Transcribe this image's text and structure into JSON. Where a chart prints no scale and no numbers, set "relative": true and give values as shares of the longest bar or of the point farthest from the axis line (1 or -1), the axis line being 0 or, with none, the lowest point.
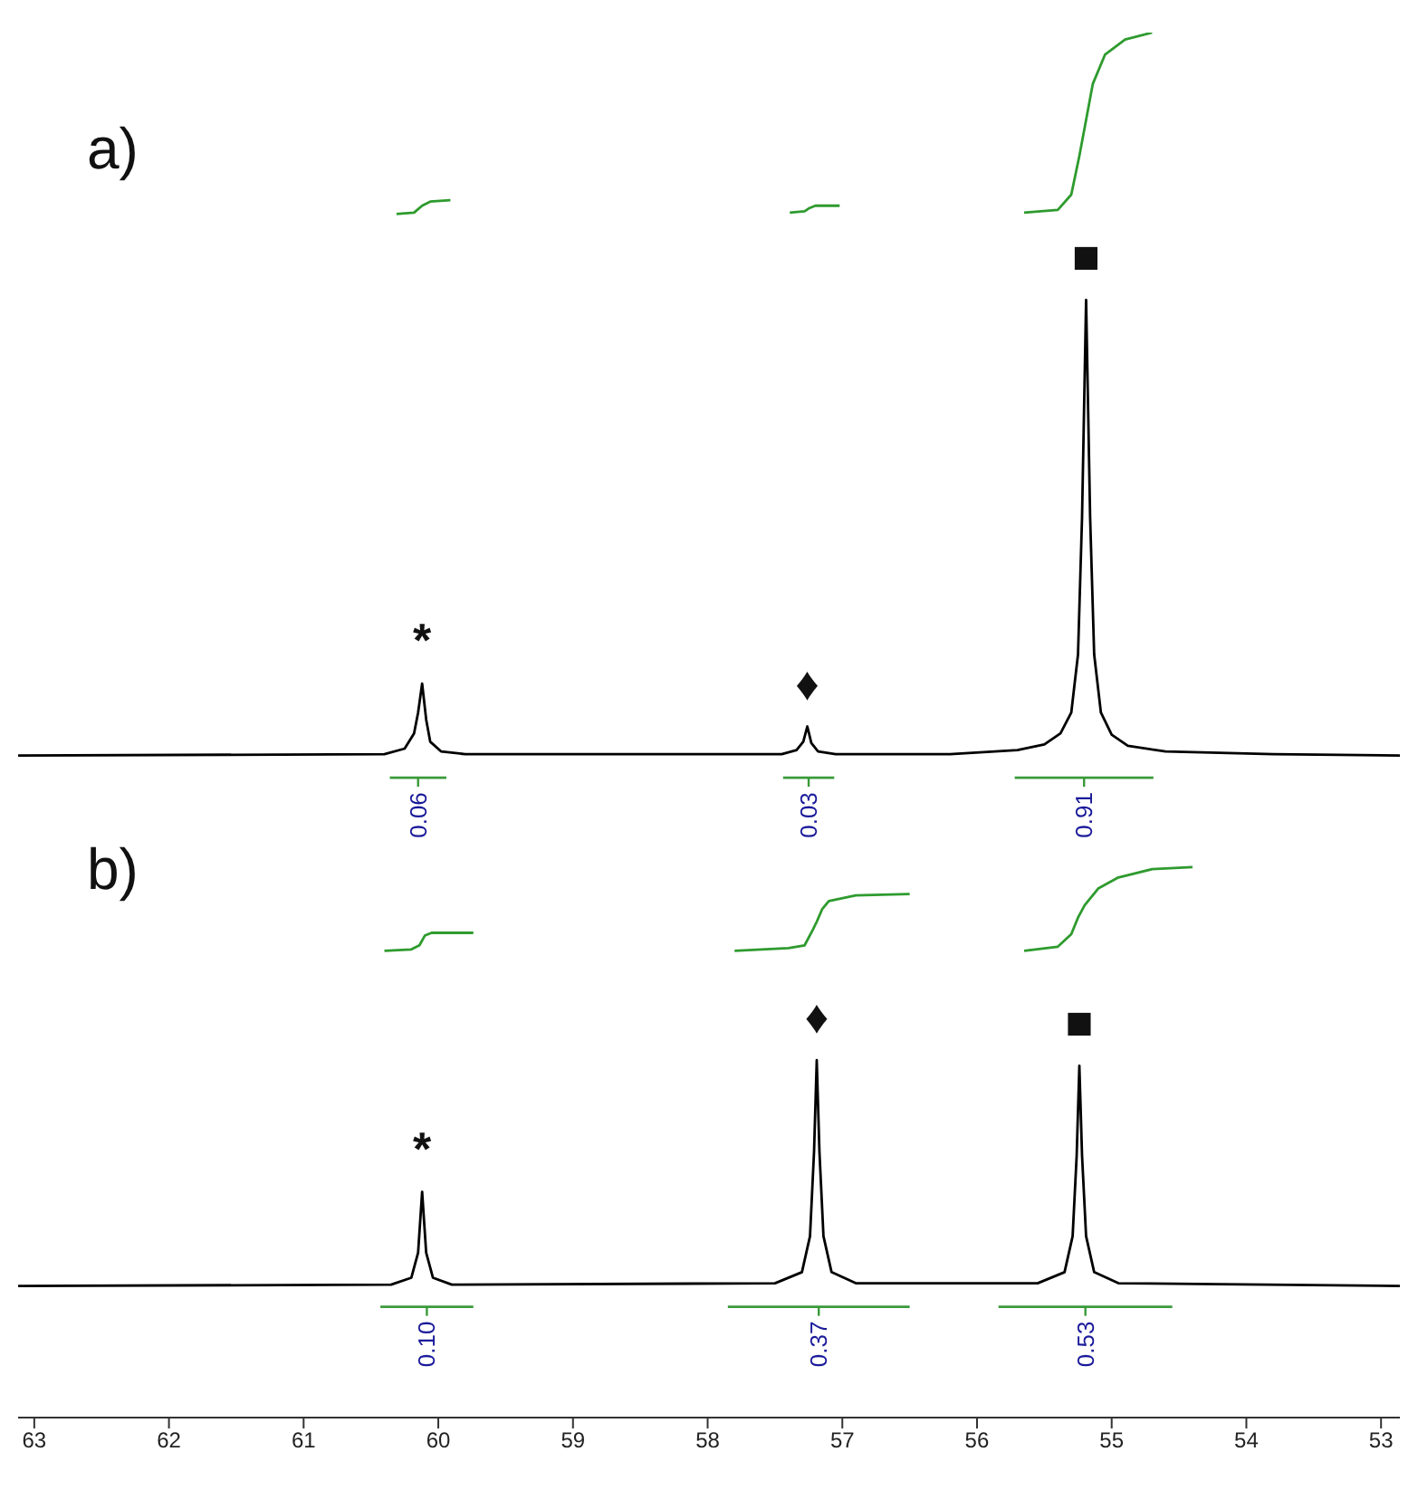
{
  "chart_data": {
    "type": "line",
    "relative": true,
    "xlim": [
      63.12,
      52.86
    ],
    "xticks": [
      63,
      62,
      61,
      60,
      59,
      58,
      57,
      56,
      55,
      54,
      53
    ],
    "series": [
      {
        "color": "#000000",
        "x": [
          63.12,
          60.4,
          60.25,
          60.18,
          60.15,
          60.12,
          60.09,
          60.06,
          59.98,
          59.8,
          57.45,
          57.34,
          57.29,
          57.26,
          57.23,
          57.18,
          57.05,
          56.2,
          55.7,
          55.5,
          55.38,
          55.3,
          55.25,
          55.22,
          55.19,
          55.16,
          55.13,
          55.08,
          55.0,
          54.88,
          54.6,
          53.8,
          52.86
        ],
        "values": [
          0.478,
          0.479,
          0.483,
          0.494,
          0.509,
          0.53,
          0.504,
          0.488,
          0.481,
          0.479,
          0.479,
          0.482,
          0.488,
          0.499,
          0.487,
          0.481,
          0.479,
          0.479,
          0.482,
          0.486,
          0.494,
          0.509,
          0.551,
          0.65,
          0.807,
          0.65,
          0.551,
          0.509,
          0.493,
          0.485,
          0.481,
          0.479,
          0.478
        ]
      },
      {
        "color": "#2e9b2e",
        "x": [
          60.31,
          60.18,
          60.12,
          60.06,
          59.91
        ],
        "values": [
          0.869,
          0.87,
          0.875,
          0.878,
          0.879
        ]
      },
      {
        "color": "#2e9b2e",
        "x": [
          57.39,
          57.28,
          57.25,
          57.2,
          57.02
        ],
        "values": [
          0.87,
          0.871,
          0.873,
          0.875,
          0.875
        ]
      },
      {
        "color": "#2e9b2e",
        "x": [
          55.65,
          55.4,
          55.3,
          55.24,
          55.19,
          55.14,
          55.05,
          54.9,
          54.7
        ],
        "values": [
          0.87,
          0.872,
          0.883,
          0.911,
          0.937,
          0.963,
          0.984,
          0.995,
          1.0
        ]
      },
      {
        "color": "#3a9a3a",
        "x": [
          60.36,
          60.15,
          59.94
        ],
        "values": [
          0.462,
          0.462,
          0.462
        ]
      },
      {
        "color": "#3a9a3a",
        "x": [
          57.44,
          57.25,
          57.06
        ],
        "values": [
          0.462,
          0.462,
          0.462
        ]
      },
      {
        "color": "#3a9a3a",
        "x": [
          55.72,
          55.205,
          54.69
        ],
        "values": [
          0.462,
          0.462,
          0.462
        ]
      },
      {
        "color": "#000000",
        "x": [
          63.12,
          60.35,
          60.2,
          60.15,
          60.12,
          60.09,
          60.04,
          59.9,
          57.5,
          57.3,
          57.24,
          57.21,
          57.19,
          57.17,
          57.14,
          57.08,
          56.9,
          55.55,
          55.35,
          55.29,
          55.26,
          55.24,
          55.22,
          55.19,
          55.13,
          54.95,
          52.86
        ],
        "values": [
          0.095,
          0.096,
          0.101,
          0.119,
          0.163,
          0.119,
          0.101,
          0.096,
          0.097,
          0.105,
          0.131,
          0.192,
          0.258,
          0.192,
          0.131,
          0.105,
          0.097,
          0.097,
          0.105,
          0.131,
          0.189,
          0.254,
          0.189,
          0.131,
          0.105,
          0.097,
          0.095
        ]
      },
      {
        "color": "#2e9b2e",
        "x": [
          60.4,
          60.2,
          60.14,
          60.1,
          60.05,
          59.74
        ],
        "values": [
          0.337,
          0.338,
          0.341,
          0.348,
          0.35,
          0.35
        ]
      },
      {
        "color": "#2e9b2e",
        "x": [
          57.8,
          57.4,
          57.28,
          57.22,
          57.19,
          57.15,
          57.1,
          56.9,
          56.5
        ],
        "values": [
          0.337,
          0.339,
          0.341,
          0.352,
          0.358,
          0.367,
          0.373,
          0.377,
          0.378
        ]
      },
      {
        "color": "#2e9b2e",
        "x": [
          55.65,
          55.4,
          55.3,
          55.25,
          55.2,
          55.1,
          54.95,
          54.7,
          54.4
        ],
        "values": [
          0.337,
          0.34,
          0.349,
          0.361,
          0.37,
          0.382,
          0.39,
          0.396,
          0.3975
        ]
      },
      {
        "color": "#3a9a3a",
        "x": [
          60.43,
          60.085,
          59.74
        ],
        "values": [
          0.08,
          0.08,
          0.08
        ]
      },
      {
        "color": "#3a9a3a",
        "x": [
          57.85,
          57.175,
          56.5
        ],
        "values": [
          0.08,
          0.08,
          0.08
        ]
      },
      {
        "color": "#3a9a3a",
        "x": [
          55.84,
          55.195,
          54.55
        ],
        "values": [
          0.08,
          0.08,
          0.08
        ]
      }
    ],
    "annotations": [
      "a)",
      "b)",
      {
        "text": "*",
        "x": 60.12,
        "y": 0.53
      },
      {
        "text": "♦",
        "x": 57.26,
        "y": 0.499
      },
      {
        "text": "■",
        "x": 55.19,
        "y": 0.807
      },
      {
        "text": "0.06",
        "x": 60.15,
        "y": 0.462
      },
      {
        "text": "0.03",
        "x": 57.25,
        "y": 0.462
      },
      {
        "text": "0.91",
        "x": 55.205,
        "y": 0.462
      },
      {
        "text": "*",
        "x": 60.12,
        "y": 0.163
      },
      {
        "text": "♦",
        "x": 57.19,
        "y": 0.258
      },
      {
        "text": "■",
        "x": 55.24,
        "y": 0.254
      },
      {
        "text": "0.10",
        "x": 60.085,
        "y": 0.08
      },
      {
        "text": "0.37",
        "x": 57.175,
        "y": 0.08
      },
      {
        "text": "0.53",
        "x": 55.195,
        "y": 0.08
      }
    ]
  }
}
